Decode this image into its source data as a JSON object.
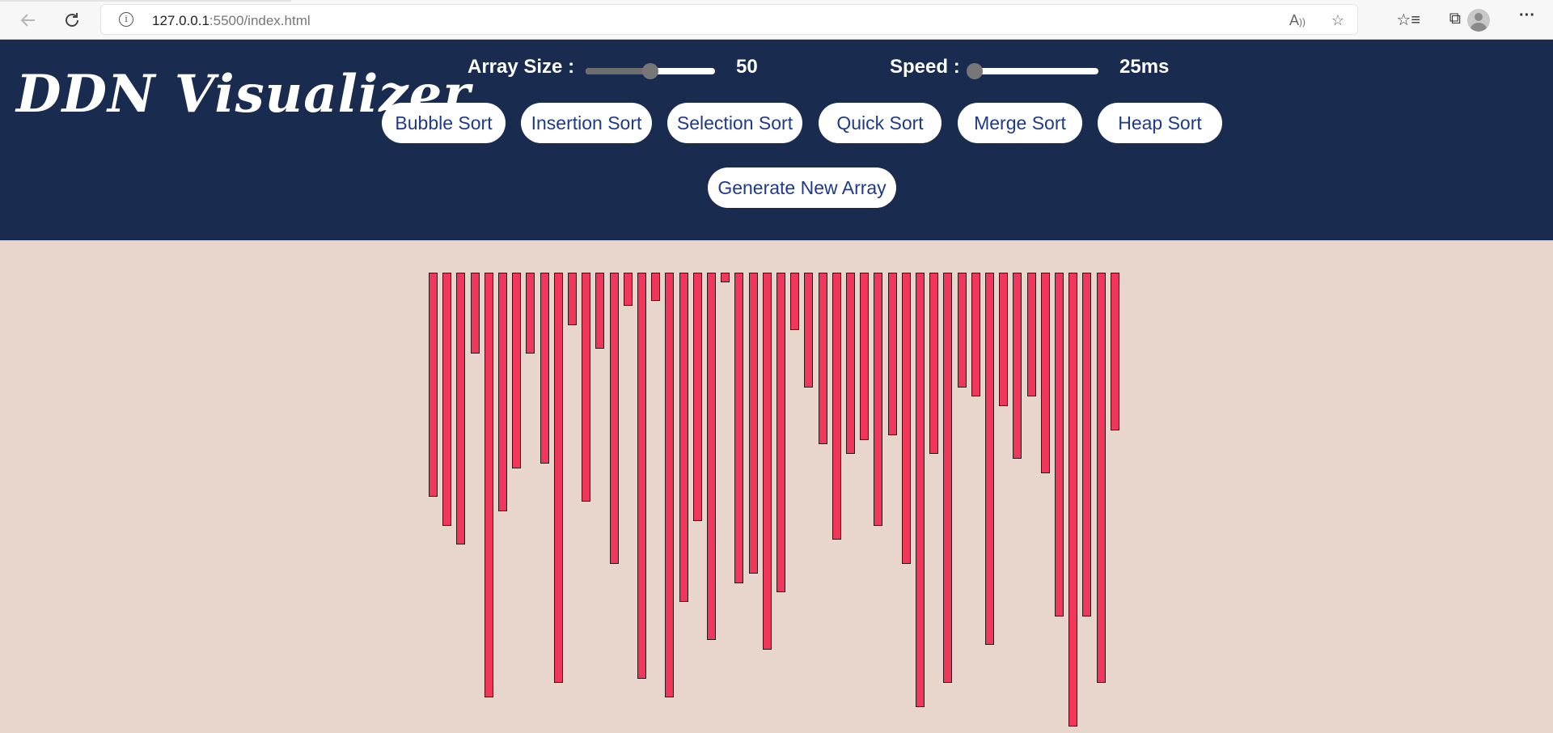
{
  "browser": {
    "url_host": "127.0.0.1",
    "url_rest": ":5500/index.html",
    "icons": [
      "back-arrow-icon",
      "reload-icon",
      "info-icon",
      "read-aloud-icon",
      "add-favorite-icon",
      "favorites-icon",
      "collections-icon",
      "profile-icon",
      "more-icon"
    ]
  },
  "header": {
    "logo": "DDN Visualizer",
    "array_size_label": "Array Size :",
    "array_size_value": "50",
    "array_size_fraction": 0.5,
    "speed_label": "Speed :",
    "speed_value": "25ms",
    "speed_fraction": 0.03,
    "sort_buttons": [
      "Bubble Sort",
      "Insertion Sort",
      "Selection Sort",
      "Quick Sort",
      "Merge Sort",
      "Heap Sort"
    ],
    "generate_label": "Generate New Array"
  },
  "array": {
    "values": [
      47,
      53,
      57,
      17,
      89,
      50,
      41,
      17,
      40,
      86,
      11,
      48,
      16,
      61,
      7,
      85,
      6,
      89,
      69,
      52,
      77,
      2,
      65,
      63,
      79,
      67,
      12,
      24,
      36,
      56,
      38,
      35,
      53,
      34,
      61,
      91,
      38,
      86,
      24,
      26,
      78,
      28,
      39,
      26,
      42,
      72,
      95,
      72,
      86,
      33
    ],
    "bar_color": "#f0365a",
    "background": "#e8d5cc",
    "header_color": "#192b4f"
  }
}
